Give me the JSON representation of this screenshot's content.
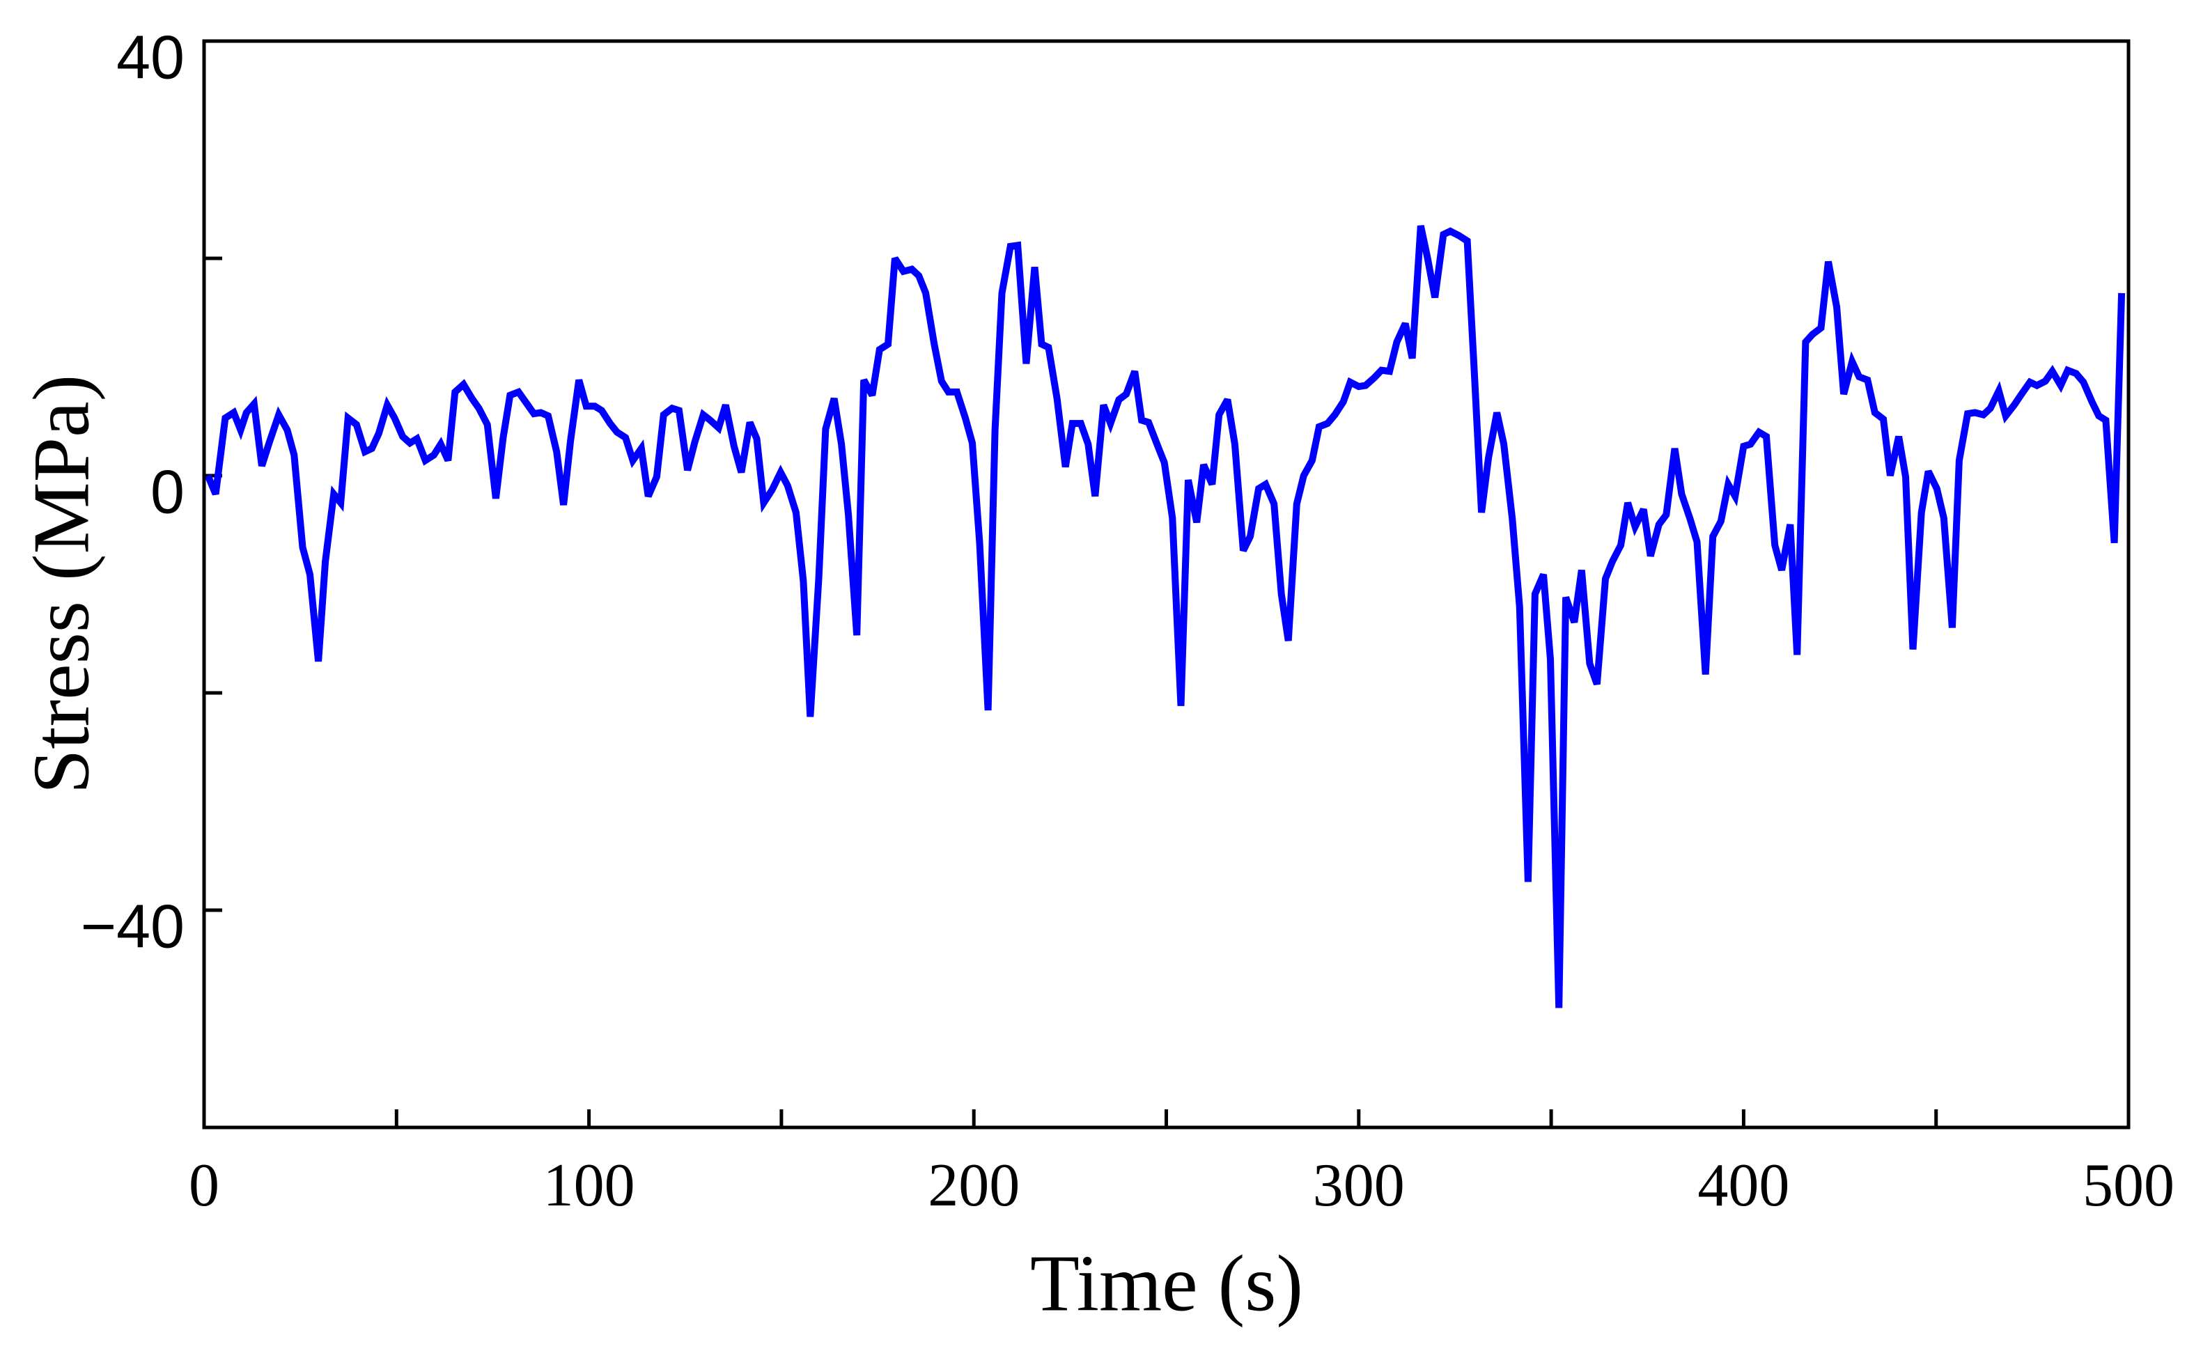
{
  "chart_data": {
    "type": "line",
    "x_label": "Time (s)",
    "y_label": "Stress (MPa)",
    "xlim": [
      0,
      500
    ],
    "xticks": [
      0,
      100,
      200,
      300,
      400,
      500
    ],
    "x_minor_ticks": [
      50,
      150,
      250,
      350,
      450
    ],
    "ylim": [
      -60,
      40
    ],
    "yticks": [
      {
        "value": -40,
        "label": "−40"
      },
      0,
      40
    ],
    "y_minor_ticks": [
      -20,
      20
    ],
    "series": [
      {
        "name": "Stress",
        "color": "#0000ff",
        "x": [
          1,
          3,
          5.5,
          7.7,
          9.5,
          11,
          13,
          15,
          17,
          19.4,
          21.6,
          23.4,
          25.6,
          27.5,
          29.7,
          31.5,
          33.7,
          35.5,
          37.4,
          39.6,
          41.8,
          43.6,
          45.4,
          47.6,
          49.5,
          51.6,
          53.5,
          55.3,
          57.5,
          59.7,
          61.5,
          63.4,
          65.2,
          67.4,
          69.6,
          71.4,
          73.6,
          75.8,
          77.7,
          79.5,
          81.7,
          83.5,
          85.7,
          87.5,
          89.4,
          91.6,
          93.4,
          95.2,
          97.4,
          99.3,
          101.5,
          103.3,
          105.5,
          107.3,
          109.5,
          111.4,
          113.6,
          115.4,
          117.6,
          119.4,
          121.6,
          123.4,
          125.6,
          127.5,
          129.7,
          131.5,
          133.7,
          135.5,
          137.7,
          139.6,
          141.8,
          143.6,
          145.4,
          147.6,
          149.8,
          151.6,
          153.8,
          155.7,
          157.5,
          159.7,
          161.5,
          163.7,
          165.6,
          167.4,
          169.6,
          171.4,
          173.6,
          175.5,
          177.7,
          179.5,
          181.7,
          183.9,
          185.7,
          187.5,
          189.7,
          191.6,
          193.4,
          195.6,
          197.8,
          199.6,
          201.5,
          203.7,
          205.5,
          207.3,
          209.5,
          211.4,
          213.6,
          215.8,
          217.6,
          219.4,
          221.6,
          223.8,
          225.6,
          227.8,
          229.7,
          231.5,
          233.7,
          235.5,
          237.7,
          239.6,
          241.8,
          243.6,
          245.4,
          247.6,
          249.5,
          251.6,
          253.8,
          255.7,
          257.9,
          259.7,
          261.9,
          263.7,
          265.9,
          267.8,
          270,
          271.8,
          274,
          275.8,
          278,
          279.9,
          281.7,
          283.9,
          285.7,
          287.9,
          289.7,
          291.9,
          293.8,
          296,
          297.8,
          300,
          301.8,
          304,
          305.9,
          308,
          309.9,
          312.1,
          313.9,
          316.1,
          317.9,
          319.8,
          322,
          323.8,
          326,
          328.2,
          330,
          331.9,
          333.7,
          335.9,
          337.7,
          339.9,
          341.8,
          344,
          345.8,
          348,
          349.8,
          352,
          353.8,
          356,
          357.9,
          360,
          361.9,
          364.1,
          365.9,
          368.1,
          369.9,
          371.8,
          374,
          375.8,
          378,
          379.9,
          382.1,
          383.9,
          386.1,
          387.9,
          390.1,
          392,
          394.1,
          396,
          397.8,
          400,
          401.8,
          404,
          405.9,
          408.1,
          409.9,
          412.1,
          413.9,
          416.1,
          417.9,
          420.1,
          422,
          424.2,
          426,
          428.2,
          430,
          432.2,
          434.1,
          436.3,
          438.1,
          440.3,
          442.1,
          444,
          446.2,
          448,
          450.2,
          452,
          454.2,
          456,
          458.2,
          460.1,
          462.3,
          464.1,
          466.3,
          468.1,
          470.3,
          472.2,
          474.4,
          476.2,
          478.4,
          480.2,
          482.4,
          484.2,
          486.4,
          488.3,
          490.5,
          492.3,
          494.1,
          496.3,
          498.2
        ],
        "values": [
          0,
          -1.7,
          5.3,
          5.8,
          4.2,
          5.8,
          6.6,
          0.9,
          3.1,
          5.6,
          4.2,
          1.9,
          -6.6,
          -9.1,
          -17.1,
          -7.9,
          -1.7,
          -2.5,
          5.3,
          4.7,
          2.2,
          2.5,
          3.9,
          6.5,
          5.3,
          3.6,
          3,
          3.4,
          1.4,
          1.9,
          2.9,
          1.4,
          7.7,
          8.4,
          7.1,
          6.2,
          4.7,
          -2.1,
          3.5,
          7.4,
          7.7,
          6.8,
          5.7,
          5.8,
          5.5,
          2.2,
          -2.7,
          3.2,
          8.8,
          6.4,
          6.4,
          6,
          4.8,
          4,
          3.5,
          1.4,
          2.5,
          -1.9,
          -0.1,
          5.6,
          6.2,
          6,
          0.5,
          3.1,
          5.6,
          5.1,
          4.4,
          6.5,
          2.7,
          0.3,
          4.9,
          3.4,
          -2.5,
          -1.3,
          0.3,
          -0.9,
          -3.4,
          -9.7,
          -22.2,
          -9.5,
          4.3,
          7.1,
          2.9,
          -3.6,
          -14.7,
          8.8,
          7.4,
          11.6,
          12.1,
          20,
          18.8,
          19,
          18.4,
          16.8,
          12.1,
          8.7,
          7.7,
          7.7,
          5.3,
          3,
          -6.2,
          -21.6,
          4.2,
          16.8,
          21.1,
          21.2,
          10.3,
          19.2,
          12.1,
          11.8,
          7.1,
          0.8,
          4.8,
          4.8,
          2.9,
          -1.9,
          6.5,
          4.8,
          7,
          7.5,
          9.6,
          5.1,
          4.9,
          2.9,
          1.2,
          -3.9,
          -21.2,
          -0.4,
          -4.3,
          1,
          -0.8,
          5.6,
          7,
          2.9,
          -6.9,
          -5.6,
          -1.2,
          -0.8,
          -2.6,
          -10.9,
          -15.2,
          -2.6,
          0,
          1.4,
          4.5,
          4.8,
          5.6,
          6.8,
          8.6,
          8.2,
          8.3,
          9,
          9.7,
          9.6,
          12.3,
          14,
          10.8,
          23,
          20,
          16.4,
          22.2,
          22.5,
          22.1,
          21.6,
          9.7,
          -3.4,
          1.6,
          5.8,
          2.9,
          -4,
          -12.1,
          -37.4,
          -10.9,
          -9.1,
          -16.9,
          -49,
          -11.2,
          -13.5,
          -8.7,
          -17.3,
          -19.2,
          -9.5,
          -7.9,
          -6.4,
          -2.5,
          -4.7,
          -3.1,
          -7.4,
          -4.5,
          -3.6,
          2.5,
          -1.7,
          -4,
          -6.1,
          -18.3,
          -5.6,
          -4.2,
          -0.8,
          -1.9,
          2.7,
          2.9,
          4,
          3.6,
          -6.4,
          -8.7,
          -4.5,
          -16.5,
          12.3,
          13,
          13.6,
          19.7,
          15.5,
          7.5,
          10.5,
          9.1,
          8.8,
          5.8,
          5.2,
          0,
          3.6,
          -0.1,
          -16,
          -3.4,
          0.4,
          -1.2,
          -3.9,
          -14,
          1.4,
          5.7,
          5.8,
          5.6,
          6.2,
          7.8,
          5.5,
          6.5,
          7.5,
          8.6,
          8.3,
          8.7,
          9.6,
          8.3,
          9.7,
          9.4,
          8.6,
          6.8,
          5.5,
          5.1,
          -6.2,
          16.8
        ]
      }
    ]
  }
}
